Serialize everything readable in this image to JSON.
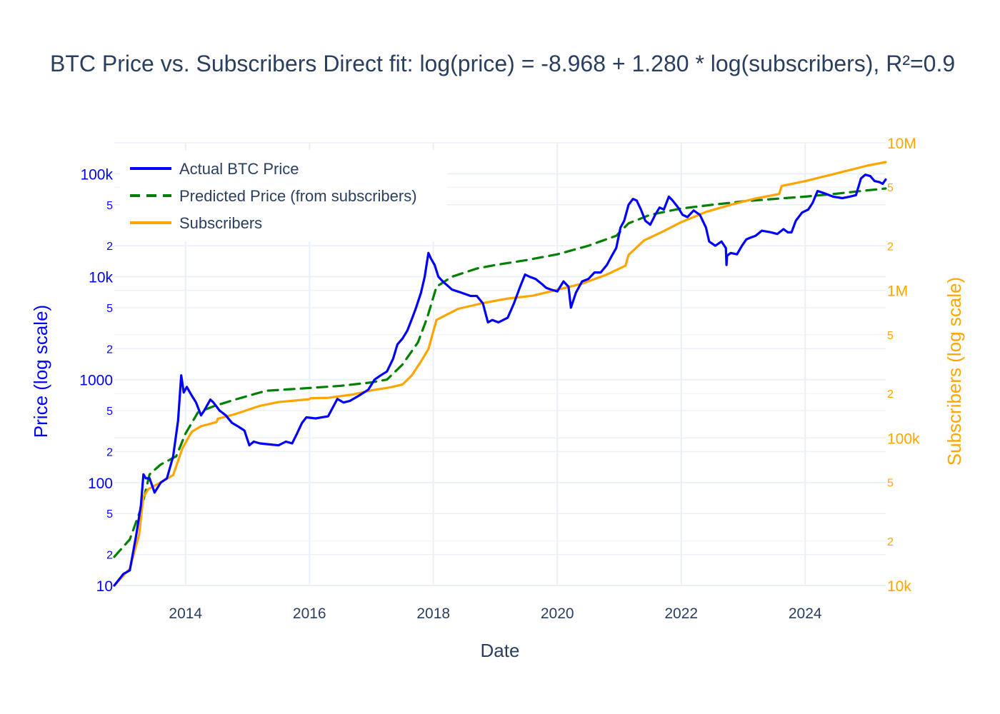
{
  "chart_data": {
    "type": "line",
    "title": "BTC Price vs. Subscribers Direct fit: log(price) = -8.968 + 1.280 * log(subscribers), R²=0.9",
    "xlabel": "Date",
    "ylabel": "Price (log scale)",
    "y2label": "Subscribers (log scale)",
    "xlim": [
      2012.85,
      2025.3
    ],
    "ylim": [
      10,
      200000
    ],
    "y2lim": [
      10000,
      10000000
    ],
    "x_ticks": [
      "2014",
      "2016",
      "2018",
      "2020",
      "2022",
      "2024"
    ],
    "y_ticks_major": [
      "10",
      "100",
      "1000",
      "10k",
      "100k"
    ],
    "y2_ticks_major": [
      "10k",
      "100k",
      "1M",
      "10M"
    ],
    "minor_tick_labels": [
      "2",
      "5"
    ],
    "legend_position": "top-left",
    "colors": {
      "price": "#0000ff",
      "predicted": "#008000",
      "subscribers": "#ffa500",
      "text": "#2a3f5f",
      "grid": "#ebf0f8"
    },
    "series": [
      {
        "name": "Actual BTC Price",
        "axis": "y",
        "style": "solid",
        "x": [
          2012.85,
          2013.0,
          2013.1,
          2013.2,
          2013.28,
          2013.32,
          2013.36,
          2013.42,
          2013.5,
          2013.6,
          2013.7,
          2013.8,
          2013.88,
          2013.93,
          2013.97,
          2014.02,
          2014.1,
          2014.17,
          2014.25,
          2014.3,
          2014.4,
          2014.45,
          2014.55,
          2014.65,
          2014.75,
          2014.85,
          2014.95,
          2015.03,
          2015.1,
          2015.2,
          2015.35,
          2015.5,
          2015.62,
          2015.72,
          2015.8,
          2015.88,
          2015.95,
          2016.1,
          2016.3,
          2016.45,
          2016.55,
          2016.65,
          2016.8,
          2016.95,
          2017.05,
          2017.15,
          2017.25,
          2017.35,
          2017.42,
          2017.5,
          2017.58,
          2017.66,
          2017.72,
          2017.8,
          2017.86,
          2017.92,
          2017.96,
          2018.02,
          2018.08,
          2018.15,
          2018.3,
          2018.45,
          2018.6,
          2018.7,
          2018.8,
          2018.88,
          2018.95,
          2019.05,
          2019.2,
          2019.3,
          2019.4,
          2019.48,
          2019.55,
          2019.65,
          2019.75,
          2019.82,
          2019.9,
          2020.0,
          2020.1,
          2020.18,
          2020.22,
          2020.3,
          2020.4,
          2020.5,
          2020.6,
          2020.7,
          2020.8,
          2020.88,
          2020.95,
          2021.02,
          2021.08,
          2021.15,
          2021.22,
          2021.28,
          2021.35,
          2021.42,
          2021.5,
          2021.58,
          2021.65,
          2021.72,
          2021.8,
          2021.86,
          2021.95,
          2022.02,
          2022.1,
          2022.2,
          2022.3,
          2022.4,
          2022.45,
          2022.55,
          2022.65,
          2022.72,
          2022.73,
          2022.74,
          2022.8,
          2022.9,
          2022.98,
          2023.05,
          2023.12,
          2023.2,
          2023.3,
          2023.45,
          2023.55,
          2023.65,
          2023.72,
          2023.78,
          2023.85,
          2023.95,
          2024.05,
          2024.12,
          2024.2,
          2024.3,
          2024.45,
          2024.6,
          2024.72,
          2024.82,
          2024.9,
          2024.97,
          2025.05,
          2025.12,
          2025.2,
          2025.25,
          2025.3
        ],
        "values": [
          10,
          13,
          14,
          30,
          60,
          120,
          110,
          110,
          80,
          100,
          110,
          180,
          400,
          1100,
          750,
          850,
          700,
          600,
          450,
          500,
          640,
          600,
          500,
          450,
          380,
          350,
          320,
          230,
          250,
          240,
          235,
          230,
          250,
          240,
          300,
          380,
          430,
          420,
          440,
          650,
          600,
          620,
          700,
          800,
          1000,
          1100,
          1200,
          1600,
          2200,
          2500,
          3000,
          4000,
          5000,
          7000,
          10000,
          17000,
          15000,
          13000,
          10000,
          9000,
          7500,
          7000,
          6500,
          6500,
          5500,
          3600,
          3800,
          3600,
          4000,
          5500,
          8000,
          10500,
          10000,
          9500,
          8500,
          7800,
          7500,
          7200,
          9000,
          8000,
          5000,
          7000,
          9000,
          9500,
          11000,
          11000,
          13000,
          16000,
          19000,
          30000,
          35000,
          50000,
          57000,
          55000,
          45000,
          35000,
          32000,
          40000,
          47000,
          45000,
          60000,
          55000,
          47000,
          40000,
          38000,
          44000,
          40000,
          30000,
          22000,
          20000,
          22000,
          19000,
          13000,
          16000,
          17000,
          16500,
          20000,
          23000,
          24000,
          25000,
          28000,
          27000,
          26000,
          29000,
          27000,
          27000,
          35000,
          42000,
          45000,
          52000,
          68000,
          65000,
          60000,
          58000,
          60000,
          62000,
          90000,
          98000,
          95000,
          85000,
          83000,
          80000,
          88000
        ]
      },
      {
        "name": "Predicted Price (from subscribers)",
        "axis": "y",
        "style": "dash",
        "x": [
          2012.85,
          2013.1,
          2013.3,
          2013.42,
          2013.6,
          2013.85,
          2014.0,
          2014.2,
          2014.45,
          2014.8,
          2015.3,
          2016.0,
          2016.5,
          2017.0,
          2017.25,
          2017.5,
          2017.75,
          2017.9,
          2018.05,
          2018.3,
          2018.7,
          2019.0,
          2019.5,
          2020.0,
          2020.5,
          2020.95,
          2021.15,
          2021.5,
          2022.0,
          2022.5,
          2023.0,
          2023.5,
          2024.0,
          2024.5,
          2025.0,
          2025.3
        ],
        "values": [
          19,
          28,
          60,
          120,
          150,
          180,
          300,
          480,
          550,
          640,
          780,
          830,
          870,
          940,
          1000,
          1400,
          2300,
          4000,
          8000,
          10000,
          12000,
          13000,
          14500,
          16500,
          20000,
          25000,
          33000,
          40000,
          46000,
          50000,
          54000,
          57000,
          60000,
          64000,
          69000,
          72000
        ]
      },
      {
        "name": "Subscribers",
        "axis": "y2",
        "style": "solid",
        "x": [
          2012.85,
          2013.1,
          2013.25,
          2013.32,
          2013.4,
          2013.6,
          2013.8,
          2013.95,
          2014.1,
          2014.25,
          2014.5,
          2014.52,
          2014.8,
          2015.2,
          2015.5,
          2016.0,
          2016.02,
          2016.3,
          2016.7,
          2017.0,
          2017.3,
          2017.5,
          2017.65,
          2017.8,
          2017.92,
          2018.05,
          2018.4,
          2018.8,
          2019.2,
          2019.6,
          2020.0,
          2020.4,
          2020.8,
          2021.1,
          2021.15,
          2021.4,
          2021.7,
          2022.0,
          2022.4,
          2022.8,
          2023.2,
          2023.58,
          2023.62,
          2024.0,
          2024.5,
          2025.0,
          2025.3
        ],
        "values": [
          10000,
          13000,
          22000,
          40000,
          45000,
          50000,
          56000,
          85000,
          110000,
          120000,
          128000,
          135000,
          145000,
          165000,
          175000,
          183000,
          186000,
          187000,
          197000,
          210000,
          220000,
          230000,
          265000,
          330000,
          400000,
          630000,
          750000,
          820000,
          880000,
          920000,
          1010000,
          1110000,
          1280000,
          1470000,
          1740000,
          2180000,
          2500000,
          2900000,
          3400000,
          3800000,
          4200000,
          4500000,
          5100000,
          5500000,
          6200000,
          7000000,
          7400000
        ]
      }
    ]
  }
}
